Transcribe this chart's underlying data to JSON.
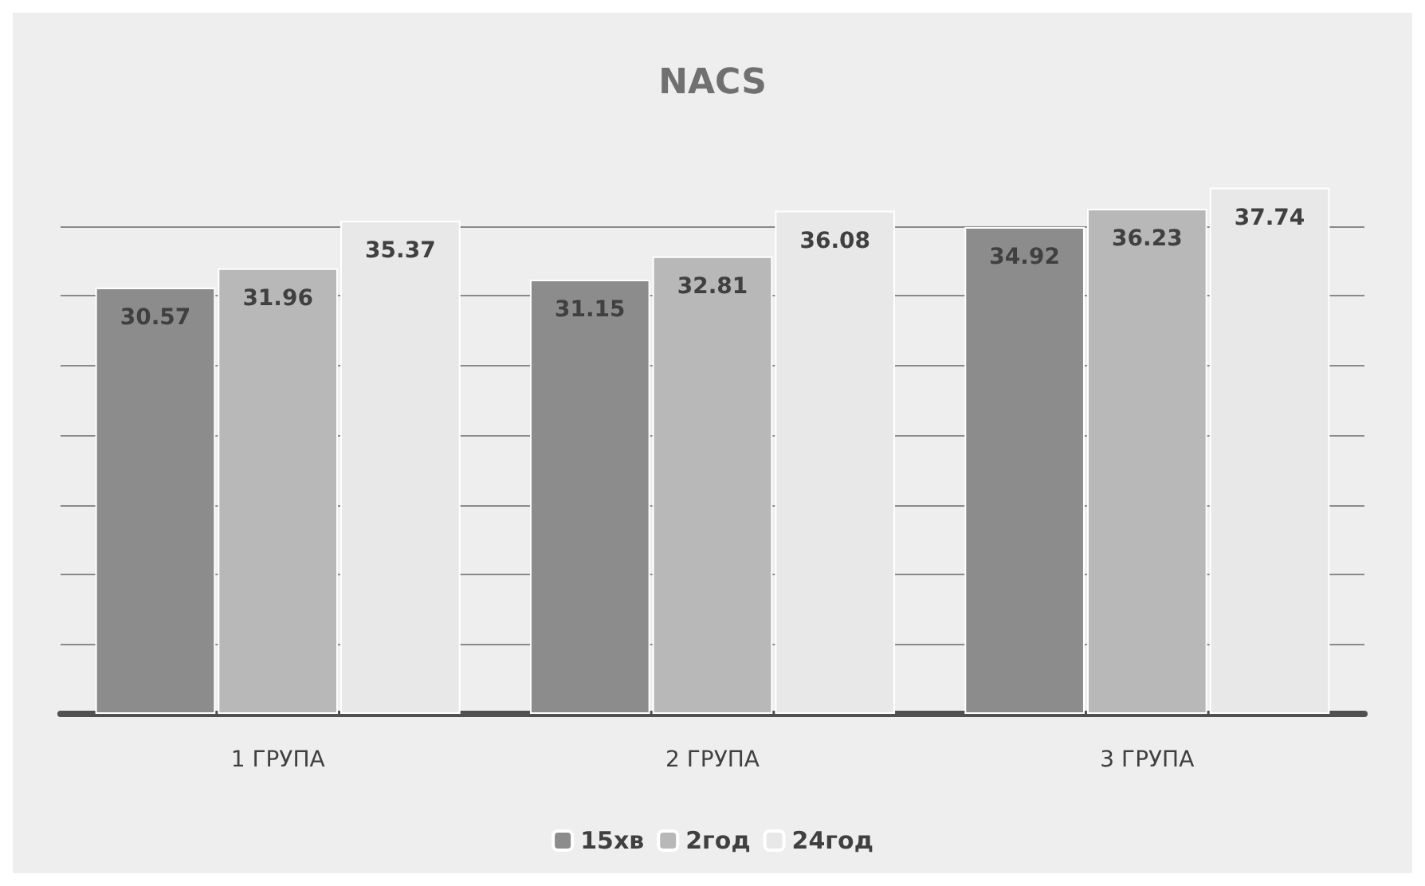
{
  "chart_data": {
    "type": "bar",
    "title": "NACS",
    "categories": [
      "1 ГРУПА",
      "2 ГРУПА",
      "3 ГРУПА"
    ],
    "series": [
      {
        "name": "15хв",
        "color": "#8c8c8c",
        "values": [
          30.57,
          31.15,
          34.92
        ]
      },
      {
        "name": "2год",
        "color": "#b8b8b8",
        "values": [
          31.96,
          32.81,
          36.23
        ]
      },
      {
        "name": "24год",
        "color": "#e8e8e8",
        "values": [
          35.37,
          36.08,
          37.74
        ]
      }
    ],
    "yticks": [
      {
        "value": 0,
        "label": null
      },
      {
        "value": 5,
        "label": null
      },
      {
        "value": 10,
        "label": null
      },
      {
        "value": 15,
        "label": null
      },
      {
        "value": 20,
        "label": null
      },
      {
        "value": 25,
        "label": null
      },
      {
        "value": 30,
        "label": null
      },
      {
        "value": 35,
        "label": null
      }
    ],
    "tick_labels": "x",
    "grid": "y",
    "legend": "bottom",
    "data_labels": true
  }
}
